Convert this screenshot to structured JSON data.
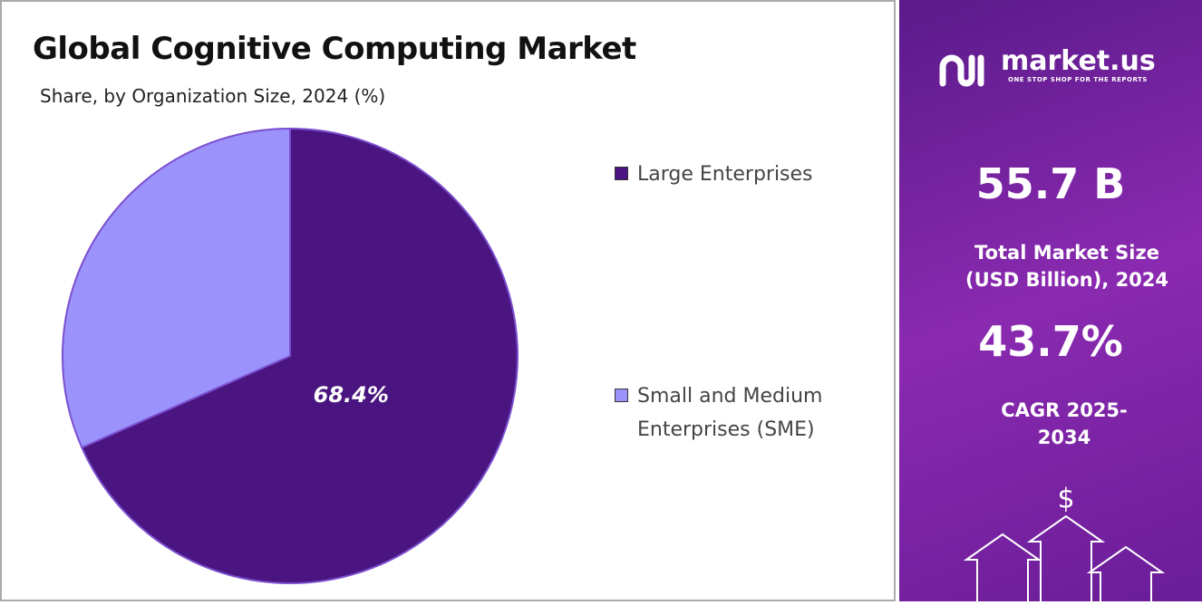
{
  "chart_data": {
    "type": "pie",
    "title": "Global Cognitive Computing Market",
    "subtitle": "Share, by Organization Size, 2024 (%)",
    "categories": [
      "Large Enterprises",
      "Small and Medium Enterprises (SME)"
    ],
    "values": [
      68.4,
      31.6
    ],
    "value_labels": [
      "68.4%",
      null
    ],
    "colors": [
      "#4a1580",
      "#9b93fb"
    ]
  },
  "panel": {
    "brand": "market.us",
    "tagline": "ONE STOP SHOP FOR THE REPORTS",
    "market_size": "55.7 B",
    "market_size_label": "Total Market Size (USD Billion), 2024",
    "cagr": "43.7%",
    "cagr_label": "CAGR 2025-2034"
  }
}
